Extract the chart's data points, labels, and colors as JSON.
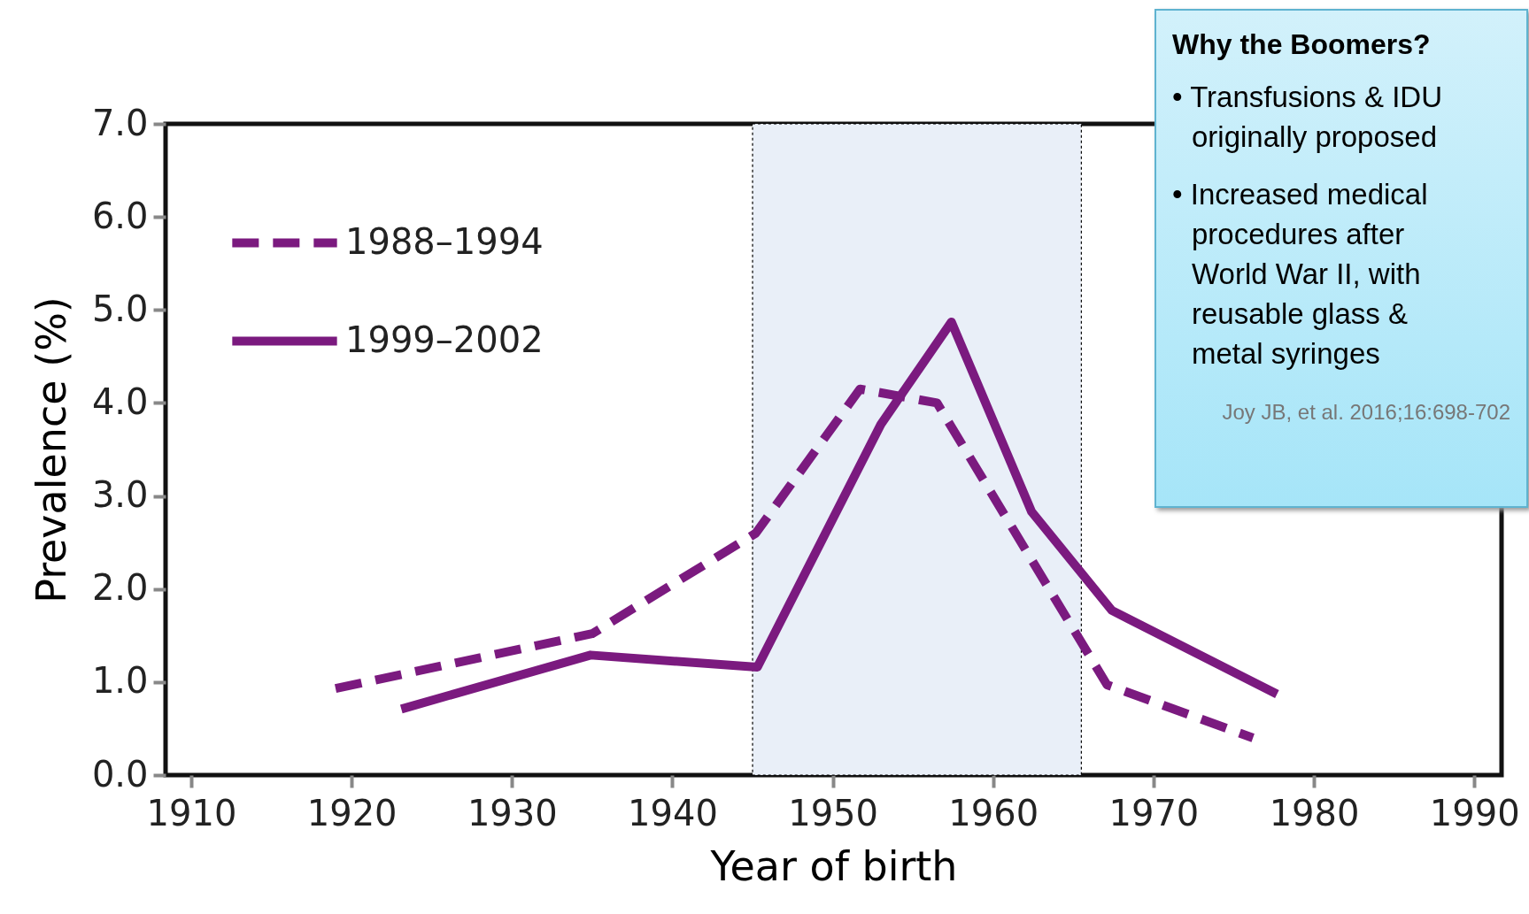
{
  "chart_data": {
    "type": "line",
    "xlabel": "Year of birth",
    "ylabel": "Prevalence (%)",
    "xlim": [
      1908.4,
      1991.7
    ],
    "xticks": [
      1910,
      1920,
      1930,
      1940,
      1950,
      1960,
      1970,
      1980,
      1990
    ],
    "ylim": [
      0,
      7
    ],
    "yticks": [
      {
        "value": 0,
        "label": "0.0"
      },
      {
        "value": 1,
        "label": "1.0"
      },
      {
        "value": 2,
        "label": "2.0"
      },
      {
        "value": 3,
        "label": "3.0"
      },
      {
        "value": 4,
        "label": "4.0"
      },
      {
        "value": 5,
        "label": "5.0"
      },
      {
        "value": 6,
        "label": "6.0"
      },
      {
        "value": 7,
        "label": "7.0"
      }
    ],
    "legend": "top left",
    "bands": [
      {
        "axis": "x",
        "from": 1945,
        "to": 1965.5,
        "color": "#e9eff8"
      }
    ],
    "series": [
      {
        "name": "1988–1994",
        "color": "#7b1a7f",
        "line_style": "dashed",
        "x": [
          1919,
          1935,
          1945.2,
          1951.7,
          1956.5,
          1967.1,
          1976.2
        ],
        "values": [
          0.93,
          1.52,
          2.6,
          4.15,
          4.0,
          0.97,
          0.4
        ]
      },
      {
        "name": "1999–2002",
        "color": "#7b1a7f",
        "line_style": "solid",
        "x": [
          1923.1,
          1934.9,
          1945.3,
          1953,
          1957.4,
          1962.4,
          1967.4,
          1977.7
        ],
        "values": [
          0.71,
          1.29,
          1.16,
          3.77,
          4.87,
          2.83,
          1.77,
          0.87
        ]
      }
    ],
    "annotations": [
      "Why the Boomers?",
      "• Transfusions & IDU originally proposed",
      "• Increased medical procedures after World War II, with reusable glass & metal syringes",
      "Joy JB, et al. 2016;16:698-702"
    ]
  }
}
